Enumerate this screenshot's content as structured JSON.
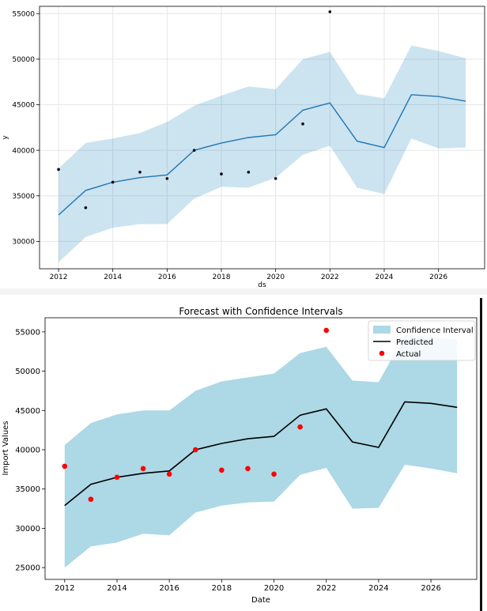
{
  "chart_data": [
    {
      "type": "line",
      "title": "",
      "xlabel": "ds",
      "ylabel": "y",
      "xlim": [
        2011.3,
        2027.7
      ],
      "ylim": [
        27000,
        55800
      ],
      "grid": true,
      "xticks": [
        2012,
        2014,
        2016,
        2018,
        2020,
        2022,
        2024,
        2026
      ],
      "yticks": [
        30000,
        35000,
        40000,
        45000,
        50000,
        55000
      ],
      "x": [
        2012,
        2013,
        2014,
        2015,
        2016,
        2017,
        2018,
        2019,
        2020,
        2021,
        2022,
        2023,
        2024,
        2025,
        2026,
        2027
      ],
      "series": [
        {
          "name": "forecast",
          "values": [
            32900,
            35600,
            36500,
            37000,
            37300,
            40000,
            40800,
            41400,
            41700,
            44400,
            45200,
            41000,
            40300,
            46100,
            45900,
            45400
          ]
        },
        {
          "name": "upper",
          "values": [
            38000,
            40800,
            41300,
            41900,
            43100,
            44900,
            46000,
            47000,
            46700,
            50000,
            50800,
            46200,
            45700,
            51500,
            50900,
            50100
          ]
        },
        {
          "name": "lower",
          "values": [
            27700,
            30500,
            31500,
            31900,
            31900,
            34700,
            36000,
            35900,
            37000,
            39500,
            40500,
            35900,
            35200,
            41300,
            40200,
            40300
          ]
        }
      ],
      "actual": {
        "x": [
          2012,
          2013,
          2014,
          2015,
          2016,
          2017,
          2018,
          2019,
          2020,
          2021,
          2022
        ],
        "values": [
          37900,
          33700,
          36500,
          37600,
          36900,
          40000,
          37400,
          37600,
          36900,
          42900,
          55200
        ]
      },
      "colors": {
        "line": "#1f77b4",
        "band": "#0072b2",
        "points": "#000000"
      }
    },
    {
      "type": "line",
      "title": "Forecast with Confidence Intervals",
      "xlabel": "Date",
      "ylabel": "Import Values",
      "xlim": [
        2011.25,
        2027.75
      ],
      "ylim": [
        23500,
        56800
      ],
      "grid": false,
      "xticks": [
        2012,
        2014,
        2016,
        2018,
        2020,
        2022,
        2024,
        2026
      ],
      "yticks": [
        25000,
        30000,
        35000,
        40000,
        45000,
        50000,
        55000
      ],
      "x": [
        2012,
        2013,
        2014,
        2015,
        2016,
        2017,
        2018,
        2019,
        2020,
        2021,
        2022,
        2023,
        2024,
        2025,
        2026,
        2027
      ],
      "series": [
        {
          "name": "Predicted",
          "values": [
            32900,
            35600,
            36500,
            37000,
            37300,
            40000,
            40800,
            41400,
            41700,
            44400,
            45200,
            41000,
            40300,
            46100,
            45900,
            45400
          ]
        },
        {
          "name": "upper",
          "values": [
            40600,
            43400,
            44500,
            45000,
            45000,
            47500,
            48700,
            49200,
            49700,
            52300,
            53100,
            48800,
            48600,
            54600,
            54400,
            54000
          ]
        },
        {
          "name": "lower",
          "values": [
            25000,
            27700,
            28200,
            29300,
            29100,
            32000,
            32900,
            33300,
            33400,
            36800,
            37700,
            32500,
            32600,
            38100,
            37600,
            37000
          ]
        }
      ],
      "actual": {
        "x": [
          2012,
          2013,
          2014,
          2015,
          2016,
          2017,
          2018,
          2019,
          2020,
          2021,
          2022
        ],
        "values": [
          37900,
          33700,
          36500,
          37600,
          36900,
          40000,
          37400,
          37600,
          36900,
          42900,
          55200
        ]
      },
      "legend": {
        "position": "top-right",
        "entries": [
          "Confidence Interval",
          "Predicted",
          "Actual"
        ]
      },
      "colors": {
        "line": "#000000",
        "band": "#add8e6",
        "points": "#ff0000"
      }
    }
  ]
}
